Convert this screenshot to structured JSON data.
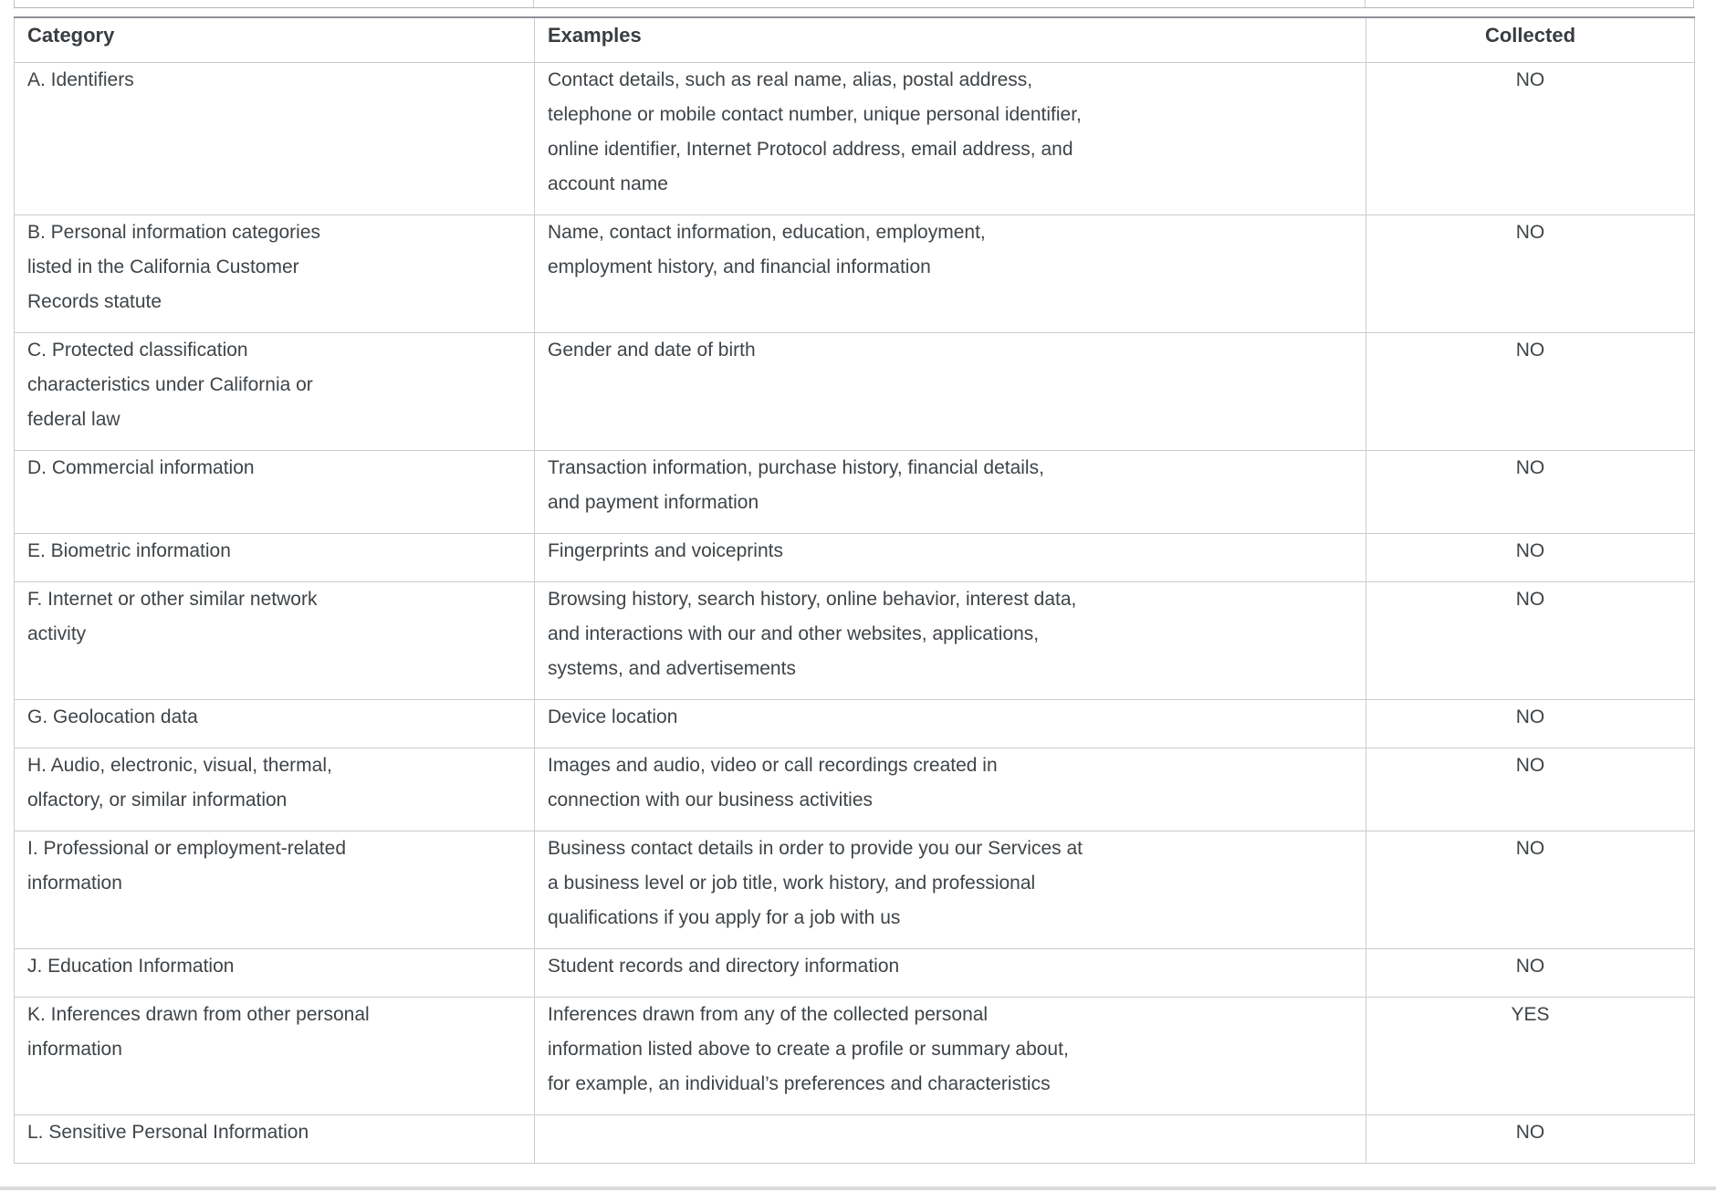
{
  "colors": {
    "text": "#3f4448",
    "border_light": "#c9cccf",
    "border_dark": "#8e9296",
    "divider": "#d9dbdd"
  },
  "table": {
    "headers": {
      "category": "Category",
      "examples": "Examples",
      "collected": "Collected"
    },
    "rows": [
      {
        "category": "A. Identifiers",
        "examples": "Contact details, such as real name, alias, postal address,\ntelephone or mobile contact number, unique personal identifier,\nonline identifier, Internet Protocol address, email address, and\naccount name",
        "collected": "NO"
      },
      {
        "category": "B. Personal information categories\nlisted in the California Customer\nRecords statute",
        "examples": "Name, contact information, education, employment,\nemployment history, and financial information",
        "collected": "NO"
      },
      {
        "category": "C. Protected classification\ncharacteristics under California or\nfederal law",
        "examples": "Gender and date of birth",
        "collected": "NO"
      },
      {
        "category": "D. Commercial information",
        "examples": "Transaction information, purchase history, financial details,\nand payment information",
        "collected": "NO"
      },
      {
        "category": "E. Biometric information",
        "examples": "Fingerprints and voiceprints",
        "collected": "NO"
      },
      {
        "category": "F. Internet or other similar network\nactivity",
        "examples": "Browsing history, search history, online behavior, interest data,\nand interactions with our and other websites, applications,\nsystems, and advertisements",
        "collected": "NO"
      },
      {
        "category": "G. Geolocation data",
        "examples": "Device location",
        "collected": "NO"
      },
      {
        "category": "H. Audio, electronic, visual, thermal,\nolfactory, or similar information",
        "examples": "Images and audio, video or call recordings created in\nconnection with our business activities",
        "collected": "NO"
      },
      {
        "category": "I. Professional or employment-related\ninformation",
        "examples": "Business contact details in order to provide you our Services at\na business level or job title, work history, and professional\nqualifications if you apply for a job with us",
        "collected": "NO"
      },
      {
        "category": "J. Education Information",
        "examples": "Student records and directory information",
        "collected": "NO"
      },
      {
        "category": "K. Inferences drawn from other personal\ninformation",
        "examples": "Inferences drawn from any of the collected personal\ninformation listed above to create a profile or summary about,\nfor example, an individual’s preferences and characteristics",
        "collected": "YES"
      },
      {
        "category": "L. Sensitive Personal Information",
        "examples": "",
        "collected": "NO"
      }
    ]
  }
}
